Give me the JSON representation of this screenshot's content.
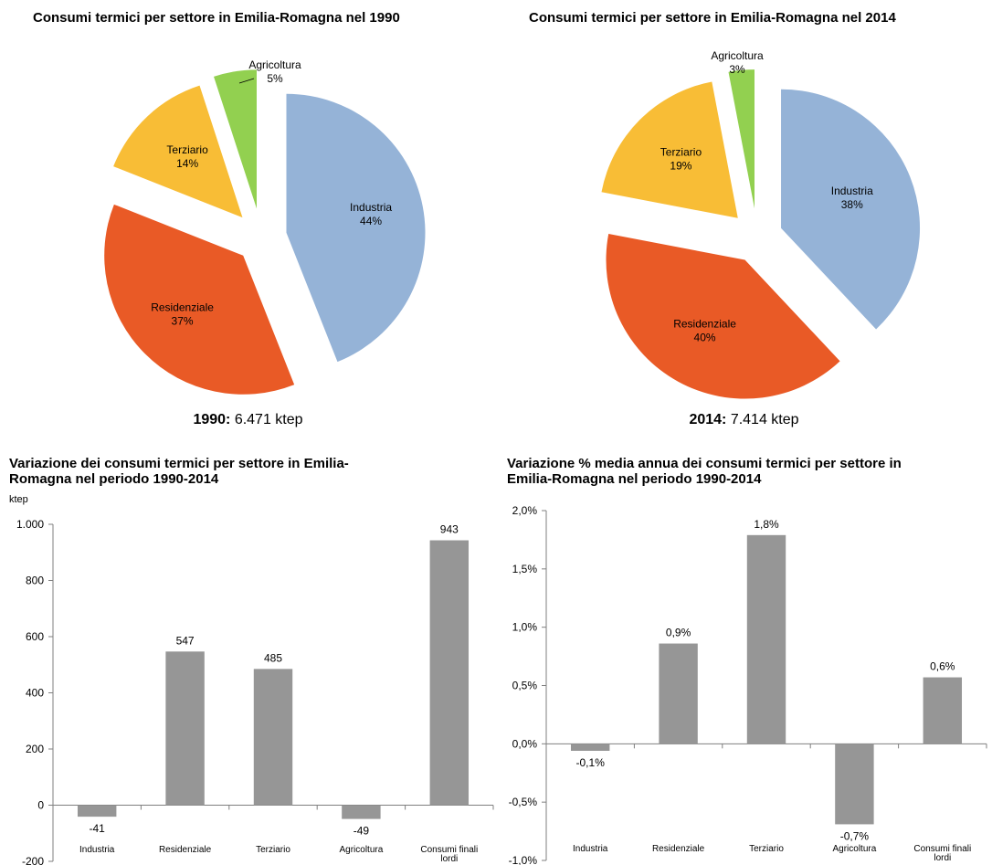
{
  "chart_data": [
    {
      "type": "pie",
      "title": "Consumi termici per settore in Emilia-Romagna nel 1990",
      "caption_year": "1990:",
      "caption_value": "6.471 ktep",
      "slices": [
        {
          "label": "Industria",
          "value": 44,
          "value_label": "44%",
          "color": "#95b3d7"
        },
        {
          "label": "Residenziale",
          "value": 37,
          "value_label": "37%",
          "color": "#e95a26"
        },
        {
          "label": "Terziario",
          "value": 14,
          "value_label": "14%",
          "color": "#f8bd36"
        },
        {
          "label": "Agricoltura",
          "value": 5,
          "value_label": "5%",
          "color": "#92d050"
        }
      ]
    },
    {
      "type": "pie",
      "title": "Consumi termici per settore in Emilia-Romagna nel 2014",
      "caption_year": "2014:",
      "caption_value": "7.414 ktep",
      "slices": [
        {
          "label": "Industria",
          "value": 38,
          "value_label": "38%",
          "color": "#95b3d7"
        },
        {
          "label": "Residenziale",
          "value": 40,
          "value_label": "40%",
          "color": "#e95a26"
        },
        {
          "label": "Terziario",
          "value": 19,
          "value_label": "19%",
          "color": "#f8bd36"
        },
        {
          "label": "Agricoltura",
          "value": 3,
          "value_label": "3%",
          "color": "#92d050"
        }
      ]
    },
    {
      "type": "bar",
      "title_lines": [
        "Variazione dei consumi termici per settore in Emilia-",
        "Romagna nel periodo 1990-2014"
      ],
      "ylabel": "ktep",
      "categories": [
        "Industria",
        "Residenziale",
        "Terziario",
        "Agricoltura",
        "Consumi finali lordi"
      ],
      "values": [
        -41,
        547,
        485,
        -49,
        943
      ],
      "value_labels": [
        "-41",
        "547",
        "485",
        "-49",
        "943"
      ],
      "ylim": [
        -200,
        1000
      ],
      "yticks": [
        -200,
        0,
        200,
        400,
        600,
        800,
        1000
      ],
      "ytick_labels": [
        "-200",
        "0",
        "200",
        "400",
        "600",
        "800",
        "1.000"
      ],
      "bar_color": "#969696"
    },
    {
      "type": "bar",
      "title_lines": [
        "Variazione % media annua dei consumi termici per settore in",
        "Emilia-Romagna nel periodo 1990-2014"
      ],
      "categories": [
        "Industria",
        "Residenziale",
        "Terziario",
        "Agricoltura",
        "Consumi finali lordi"
      ],
      "values": [
        -0.06,
        0.86,
        1.79,
        -0.69,
        0.57
      ],
      "value_labels": [
        "-0,1%",
        "0,9%",
        "1,8%",
        "-0,7%",
        "0,6%"
      ],
      "ylim": [
        -1.0,
        2.0
      ],
      "yticks": [
        -1.0,
        -0.5,
        0,
        0.5,
        1.0,
        1.5,
        2.0
      ],
      "ytick_labels": [
        "-1,0%",
        "-0,5%",
        "0,0%",
        "0,5%",
        "1,0%",
        "1,5%",
        "2,0%"
      ],
      "bar_color": "#969696"
    }
  ]
}
